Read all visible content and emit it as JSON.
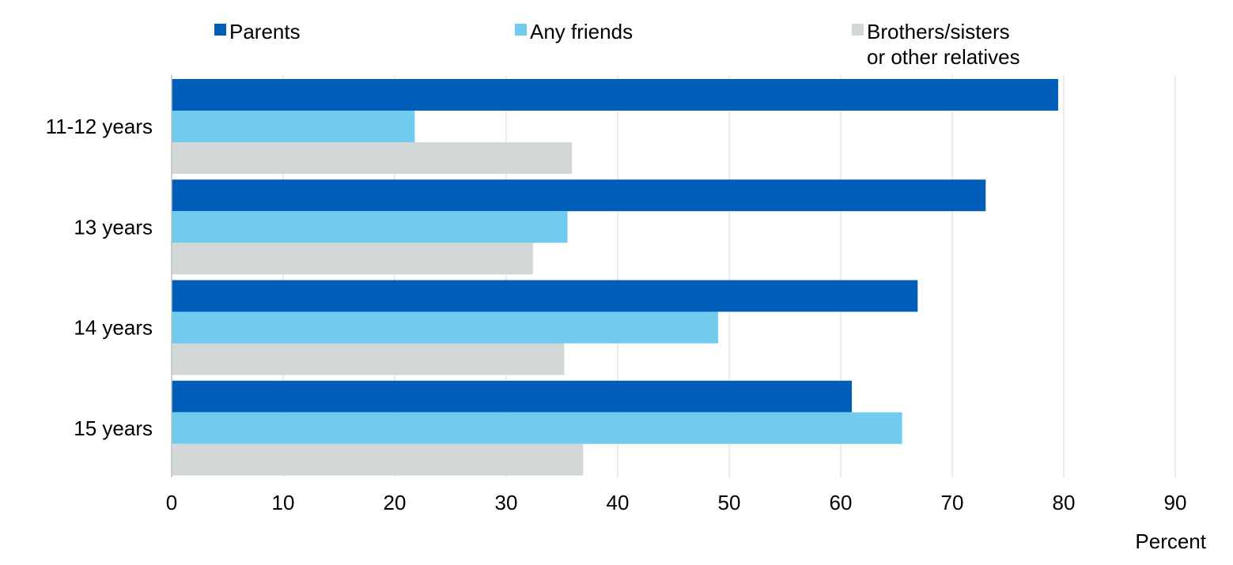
{
  "chart_data": {
    "type": "bar",
    "orientation": "horizontal",
    "categories": [
      "11-12 years",
      "13 years",
      "14 years",
      "15 years"
    ],
    "series": [
      {
        "name": "Parents",
        "color": "#005EB8",
        "values": [
          79.5,
          73.0,
          66.9,
          61.0
        ]
      },
      {
        "name": "Any friends",
        "color": "#71CBEF",
        "values": [
          21.8,
          35.5,
          49.0,
          65.5
        ]
      },
      {
        "name": "Brothers/sisters or other relatives",
        "color": "#D1D6D6",
        "values": [
          35.9,
          32.4,
          35.2,
          36.9
        ]
      }
    ],
    "xlabel": "Percent",
    "xlim": [
      0,
      90
    ],
    "xticks": [
      "0",
      "10",
      "20",
      "30",
      "40",
      "50",
      "60",
      "70",
      "80",
      "90"
    ],
    "grid": "vertical",
    "legend_position": "top"
  }
}
